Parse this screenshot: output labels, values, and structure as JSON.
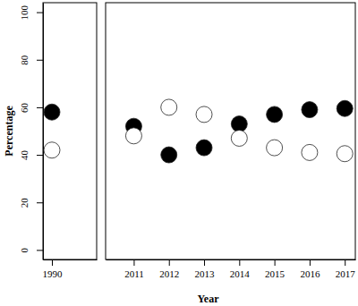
{
  "chart_data": [
    {
      "type": "scatter",
      "y_label": "Percentage",
      "x": [
        1990
      ],
      "xlim": [
        1989.8,
        1991
      ],
      "xticks": [
        1990
      ],
      "ylim": [
        -4,
        104
      ],
      "yticks": [
        0,
        20,
        40,
        60,
        80,
        100
      ],
      "series": [
        {
          "color": "#000000",
          "marker": "circle",
          "values": [
            58
          ]
        },
        {
          "color": "#ffffff",
          "marker": "circle",
          "values": [
            42
          ]
        }
      ]
    },
    {
      "type": "scatter",
      "x_label": "Year",
      "tick_labels": "x",
      "x": [
        2011,
        2012,
        2013,
        2014,
        2015,
        2016,
        2017
      ],
      "xlim": [
        2010.2,
        2017.3
      ],
      "xticks": [
        2011,
        2012,
        2013,
        2014,
        2015,
        2016,
        2017
      ],
      "ylim": [
        -4,
        104
      ],
      "series": [
        {
          "color": "#000000",
          "marker": "circle",
          "values": [
            52,
            40,
            43,
            53,
            57,
            59,
            59.5
          ]
        },
        {
          "color": "#ffffff",
          "marker": "circle",
          "values": [
            48,
            60,
            57,
            47,
            43,
            41,
            40.5
          ]
        }
      ]
    }
  ]
}
